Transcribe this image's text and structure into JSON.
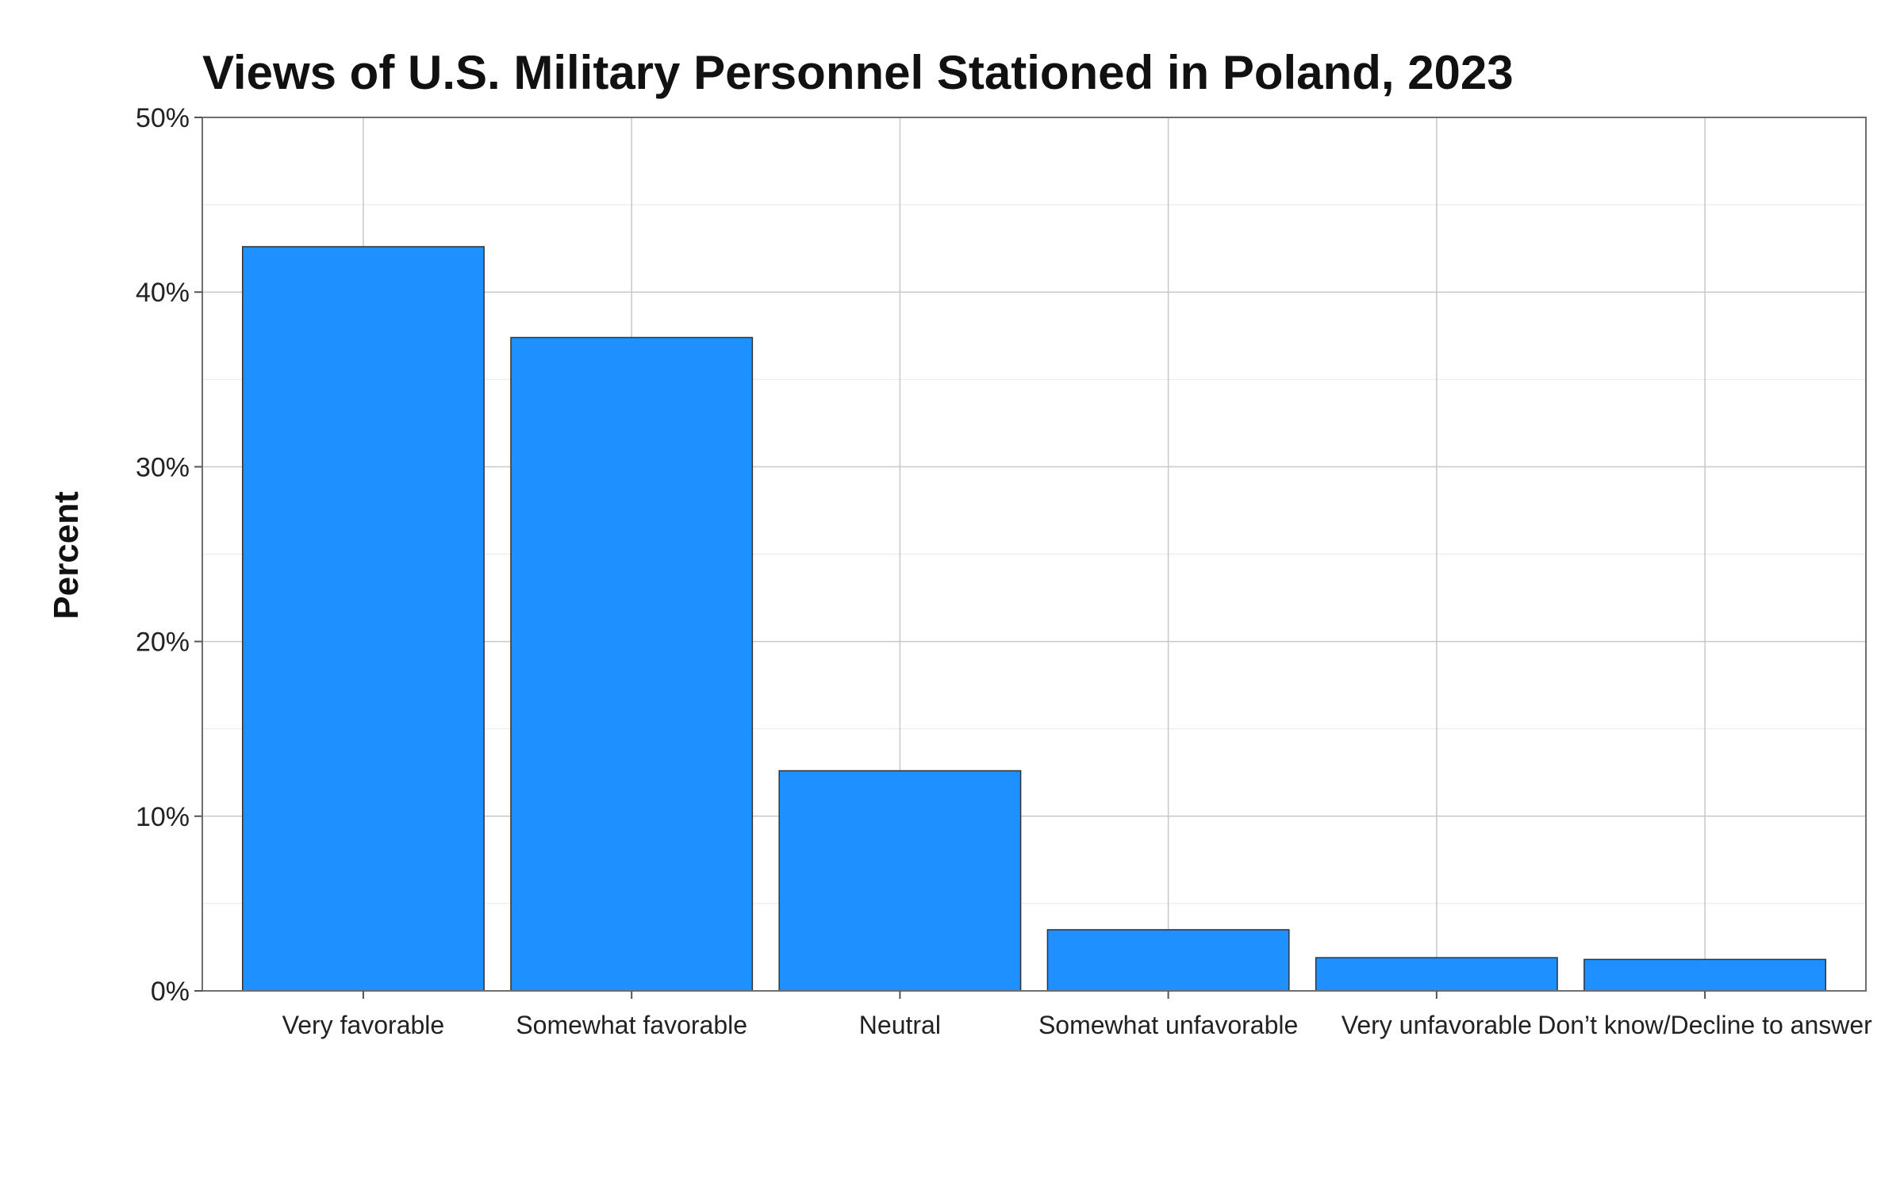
{
  "chart_data": {
    "type": "bar",
    "title": "Views of U.S. Military Personnel Stationed in Poland, 2023",
    "xlabel": "",
    "ylabel": "Percent",
    "categories": [
      "Very favorable",
      "Somewhat favorable",
      "Neutral",
      "Somewhat unfavorable",
      "Very unfavorable",
      "Don’t know/Decline to answer"
    ],
    "values": [
      42.6,
      37.4,
      12.6,
      3.5,
      1.9,
      1.8
    ],
    "ylim": [
      0,
      50
    ],
    "yticks": [
      0,
      10,
      20,
      30,
      40,
      50
    ],
    "ytick_labels": [
      "0%",
      "10%",
      "20%",
      "30%",
      "40%",
      "50%"
    ],
    "grid": true,
    "bar_color": "#1e90ff",
    "bar_edge_color": "#333333"
  }
}
